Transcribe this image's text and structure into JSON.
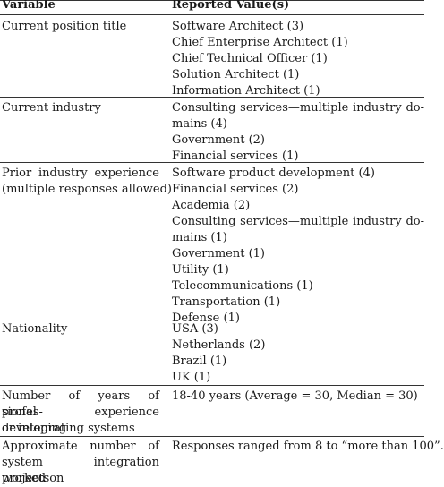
{
  "table": {
    "headers": {
      "variable": "Variable",
      "reported": "Reported Value(s)"
    },
    "rows": [
      {
        "variable_lines": [
          "Current position title"
        ],
        "values": [
          "Software Architect (3)",
          "Chief Enterprise Architect (1)",
          "Chief Technical Officer (1)",
          "Solution Architect (1)",
          "Information Architect (1)"
        ]
      },
      {
        "variable_lines": [
          "Current industry"
        ],
        "values": [
          "Consulting services—multiple industry do-",
          "mains (4)",
          "Government (2)",
          "Financial services (1)"
        ]
      },
      {
        "variable_lines": [
          "Prior industry experience",
          "(multiple responses allowed)"
        ],
        "values": [
          "Software product development (4)",
          "Financial services (2)",
          "Academia (2)",
          "Consulting services—multiple industry do-",
          "mains (1)",
          "Government (1)",
          "Utility (1)",
          "Telecommunications (1)",
          "Transportation (1)",
          "Defense (1)"
        ]
      },
      {
        "variable_lines": [
          "Nationality"
        ],
        "values": [
          "USA (3)",
          "Netherlands (2)",
          "Brazil (1)",
          "UK (1)"
        ]
      },
      {
        "variable_lines": [
          "Number of years of profes-",
          "sional experience developing",
          "or integrating systems"
        ],
        "values": [
          "18-40 years (Average = 30, Median = 30)"
        ]
      },
      {
        "variable_lines": [
          "Approximate number of",
          "system integration projects",
          "worked on"
        ],
        "values": [
          "Responses ranged from 8 to “more than 100”."
        ]
      }
    ]
  }
}
